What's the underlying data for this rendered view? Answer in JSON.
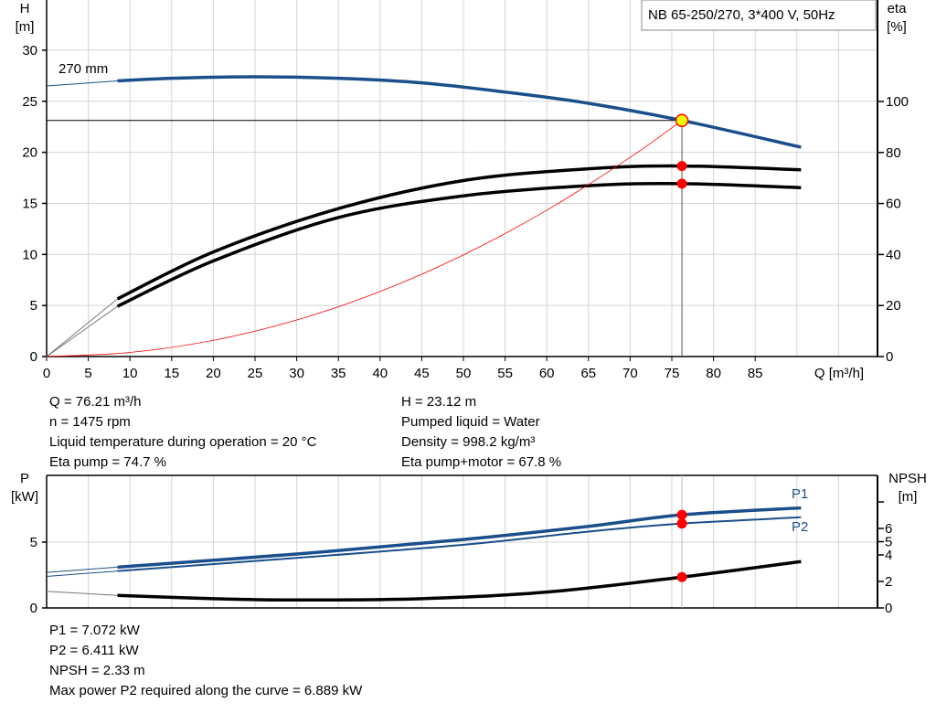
{
  "title_box": "NB 65-250/270, 3*400 V, 50Hz",
  "colors": {
    "pump_curve": "#1a4f8b",
    "eta_curve": "#000000",
    "system_curve": "#ff0000",
    "operating_point_fill": "#ffff00",
    "marker": "#ff0000",
    "grid": "#d4d4d4"
  },
  "info_top_left": [
    "Q = 76.21 m³/h",
    "n = 1475 rpm",
    "Liquid temperature during operation = 20 °C",
    "Eta pump = 74.7 %"
  ],
  "info_top_right": [
    "H = 23.12 m",
    "Pumped liquid = Water",
    "Density = 998.2 kg/m³",
    "Eta pump+motor = 67.8 %"
  ],
  "info_bottom": [
    "P1 = 7.072 kW",
    "P2 = 6.411 kW",
    "NPSH = 2.33 m",
    "Max power P2 required along the curve = 6.889 kW"
  ],
  "chart_data": [
    {
      "type": "line",
      "xlabel": "Q [m³/h]",
      "ylabel": [
        "H",
        "[m]"
      ],
      "y2label": [
        "eta",
        "[%]"
      ],
      "xlim": [
        0,
        100
      ],
      "ylim": [
        0,
        35
      ],
      "y2lim": [
        0,
        140
      ],
      "xticks": [
        0,
        5,
        10,
        15,
        20,
        25,
        30,
        35,
        40,
        45,
        50,
        55,
        60,
        65,
        70,
        75,
        80,
        85
      ],
      "yticks": [
        0,
        5,
        10,
        15,
        20,
        25,
        30
      ],
      "y2ticks": [
        0,
        20,
        40,
        60,
        80,
        100
      ],
      "grid": true,
      "operating_point": {
        "Q": 76.21,
        "H": 23.12,
        "eta_pump": 74.7,
        "eta_pump_motor": 67.8
      },
      "series": [
        {
          "name": "270 mm",
          "axis": "H",
          "color": "#1a4f8b",
          "thin_until": 8.5,
          "points": [
            [
              0,
              26.5
            ],
            [
              8.5,
              27.0
            ],
            [
              15,
              27.25
            ],
            [
              25,
              27.4
            ],
            [
              35,
              27.25
            ],
            [
              45,
              26.8
            ],
            [
              55,
              25.9
            ],
            [
              65,
              24.8
            ],
            [
              76.21,
              23.12
            ],
            [
              90.5,
              20.5
            ]
          ]
        },
        {
          "axis": "eta",
          "color": "#000000",
          "thin_until": 8.5,
          "points": [
            [
              0,
              0
            ],
            [
              8.5,
              22.6
            ],
            [
              20,
              41
            ],
            [
              35,
              58
            ],
            [
              50,
              69
            ],
            [
              65,
              73.6
            ],
            [
              76.21,
              74.7
            ],
            [
              90.5,
              73.2
            ]
          ]
        },
        {
          "axis": "eta",
          "color": "#000000",
          "thin_until": 8.5,
          "points": [
            [
              0,
              0
            ],
            [
              8.5,
              19.7
            ],
            [
              20,
              37.5
            ],
            [
              35,
              54.5
            ],
            [
              50,
              63
            ],
            [
              65,
              67
            ],
            [
              76.21,
              67.8
            ],
            [
              90.5,
              66.2
            ]
          ]
        },
        {
          "axis": "H",
          "color": "#ff0000",
          "system_curve": true,
          "points": [
            [
              0,
              0
            ],
            [
              10,
              0.4
            ],
            [
              20,
              1.59
            ],
            [
              30,
              3.58
            ],
            [
              40,
              6.37
            ],
            [
              50,
              9.95
            ],
            [
              60,
              14.33
            ],
            [
              70,
              19.5
            ],
            [
              76.21,
              23.12
            ]
          ]
        }
      ]
    },
    {
      "type": "line",
      "ylabel": [
        "P",
        "[kW]"
      ],
      "y2label": [
        "NPSH",
        "[m]"
      ],
      "xlim": [
        0,
        100
      ],
      "ylim": [
        0,
        10
      ],
      "y2lim": [
        0,
        10
      ],
      "yticks": [
        0,
        5
      ],
      "y2ticks": [
        {
          "v": 0,
          "label": "0"
        },
        {
          "v": 2,
          "label": "2"
        },
        {
          "v": 4,
          "label": "4"
        },
        {
          "v": 5,
          "label": "5"
        },
        {
          "v": 6,
          "label": "6"
        },
        {
          "v": 8,
          "label": ""
        }
      ],
      "grid": true,
      "operating_point": {
        "Q": 76.21,
        "P1": 7.072,
        "P2": 6.411,
        "NPSH": 2.33
      },
      "series": [
        {
          "name": "P1",
          "axis": "P",
          "color": "#1a4f8b",
          "thin_until": 8.5,
          "points": [
            [
              0,
              2.7
            ],
            [
              8.5,
              3.1
            ],
            [
              30,
              4.1
            ],
            [
              50,
              5.2
            ],
            [
              65,
              6.2
            ],
            [
              76.21,
              7.072
            ],
            [
              90.5,
              7.6
            ]
          ]
        },
        {
          "name": "P2",
          "axis": "P",
          "color": "#1a4f8b",
          "thin_until": 8.5,
          "thin_line": true,
          "points": [
            [
              0,
              2.4
            ],
            [
              8.5,
              2.8
            ],
            [
              30,
              3.8
            ],
            [
              50,
              4.8
            ],
            [
              65,
              5.8
            ],
            [
              76.21,
              6.411
            ],
            [
              90.5,
              6.889
            ]
          ]
        },
        {
          "axis": "NPSH",
          "color": "#000000",
          "thin_until": 8.5,
          "points": [
            [
              0,
              1.25
            ],
            [
              8.5,
              0.95
            ],
            [
              20,
              0.7
            ],
            [
              30,
              0.6
            ],
            [
              45,
              0.7
            ],
            [
              60,
              1.2
            ],
            [
              76.21,
              2.33
            ],
            [
              90.5,
              3.5
            ]
          ]
        }
      ]
    }
  ]
}
